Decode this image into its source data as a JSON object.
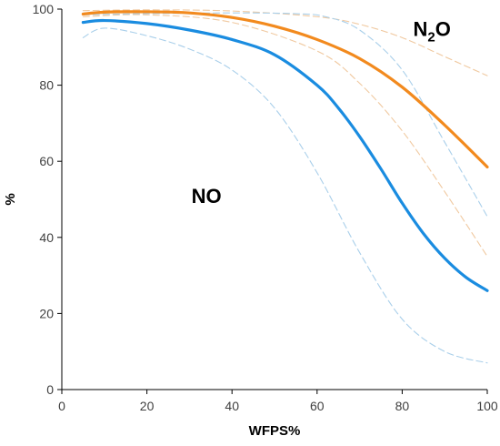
{
  "chart_data": {
    "type": "line",
    "xlabel": "WFPS%",
    "ylabel": "%",
    "xlim": [
      0,
      100
    ],
    "ylim": [
      0,
      100
    ],
    "xticks": [
      0,
      20,
      40,
      60,
      80,
      100
    ],
    "yticks": [
      0,
      20,
      40,
      60,
      80,
      100
    ],
    "grid": false,
    "annotations": [
      {
        "text": "NO",
        "x": 34,
        "y": 49
      },
      {
        "text_main": "N",
        "text_sub": "2",
        "text_tail": "O",
        "x": 87,
        "y": 93
      }
    ],
    "series": [
      {
        "id": "n2o",
        "color": "#F28A1E",
        "style": "solid",
        "x": [
          5,
          10,
          20,
          30,
          40,
          50,
          60,
          70,
          80,
          90,
          100
        ],
        "y": [
          98.7,
          99.2,
          99.3,
          99.0,
          97.8,
          95.5,
          92.0,
          87.0,
          79.5,
          69.5,
          58.5
        ]
      },
      {
        "id": "no",
        "color": "#1A8CE0",
        "style": "solid",
        "x": [
          5,
          10,
          20,
          30,
          40,
          50,
          60,
          65,
          70,
          75,
          80,
          85,
          90,
          95,
          100
        ],
        "y": [
          96.5,
          97.0,
          96.2,
          94.5,
          92.0,
          88.0,
          80.0,
          74.0,
          66.5,
          58.0,
          49.0,
          41.0,
          34.5,
          29.5,
          26.0
        ]
      },
      {
        "id": "n2o-band-upper",
        "color": "#F0C9A0",
        "style": "dashed",
        "x": [
          5,
          20,
          40,
          60,
          70,
          80,
          90,
          100
        ],
        "y": [
          99.6,
          99.8,
          99.5,
          98.0,
          96.0,
          92.5,
          87.5,
          82.5
        ]
      },
      {
        "id": "n2o-band-lower",
        "color": "#F0C9A0",
        "style": "dashed",
        "x": [
          5,
          20,
          40,
          60,
          70,
          80,
          90,
          100
        ],
        "y": [
          98.0,
          98.5,
          96.5,
          89.0,
          80.5,
          68.0,
          52.0,
          35.0
        ]
      },
      {
        "id": "no-band-upper",
        "color": "#A9CFEA",
        "style": "dashed",
        "x": [
          5,
          20,
          40,
          55,
          62,
          70,
          80,
          90,
          100
        ],
        "y": [
          98.5,
          98.8,
          99.0,
          98.8,
          98.0,
          94.5,
          84.0,
          65.0,
          45.5
        ]
      },
      {
        "id": "no-band-lower",
        "color": "#A9CFEA",
        "style": "dashed",
        "x": [
          5,
          10,
          20,
          30,
          40,
          50,
          60,
          70,
          80,
          90,
          100
        ],
        "y": [
          92.5,
          95.0,
          93.0,
          89.5,
          84.0,
          74.0,
          57.0,
          36.0,
          18.5,
          10.0,
          7.0
        ]
      }
    ]
  }
}
